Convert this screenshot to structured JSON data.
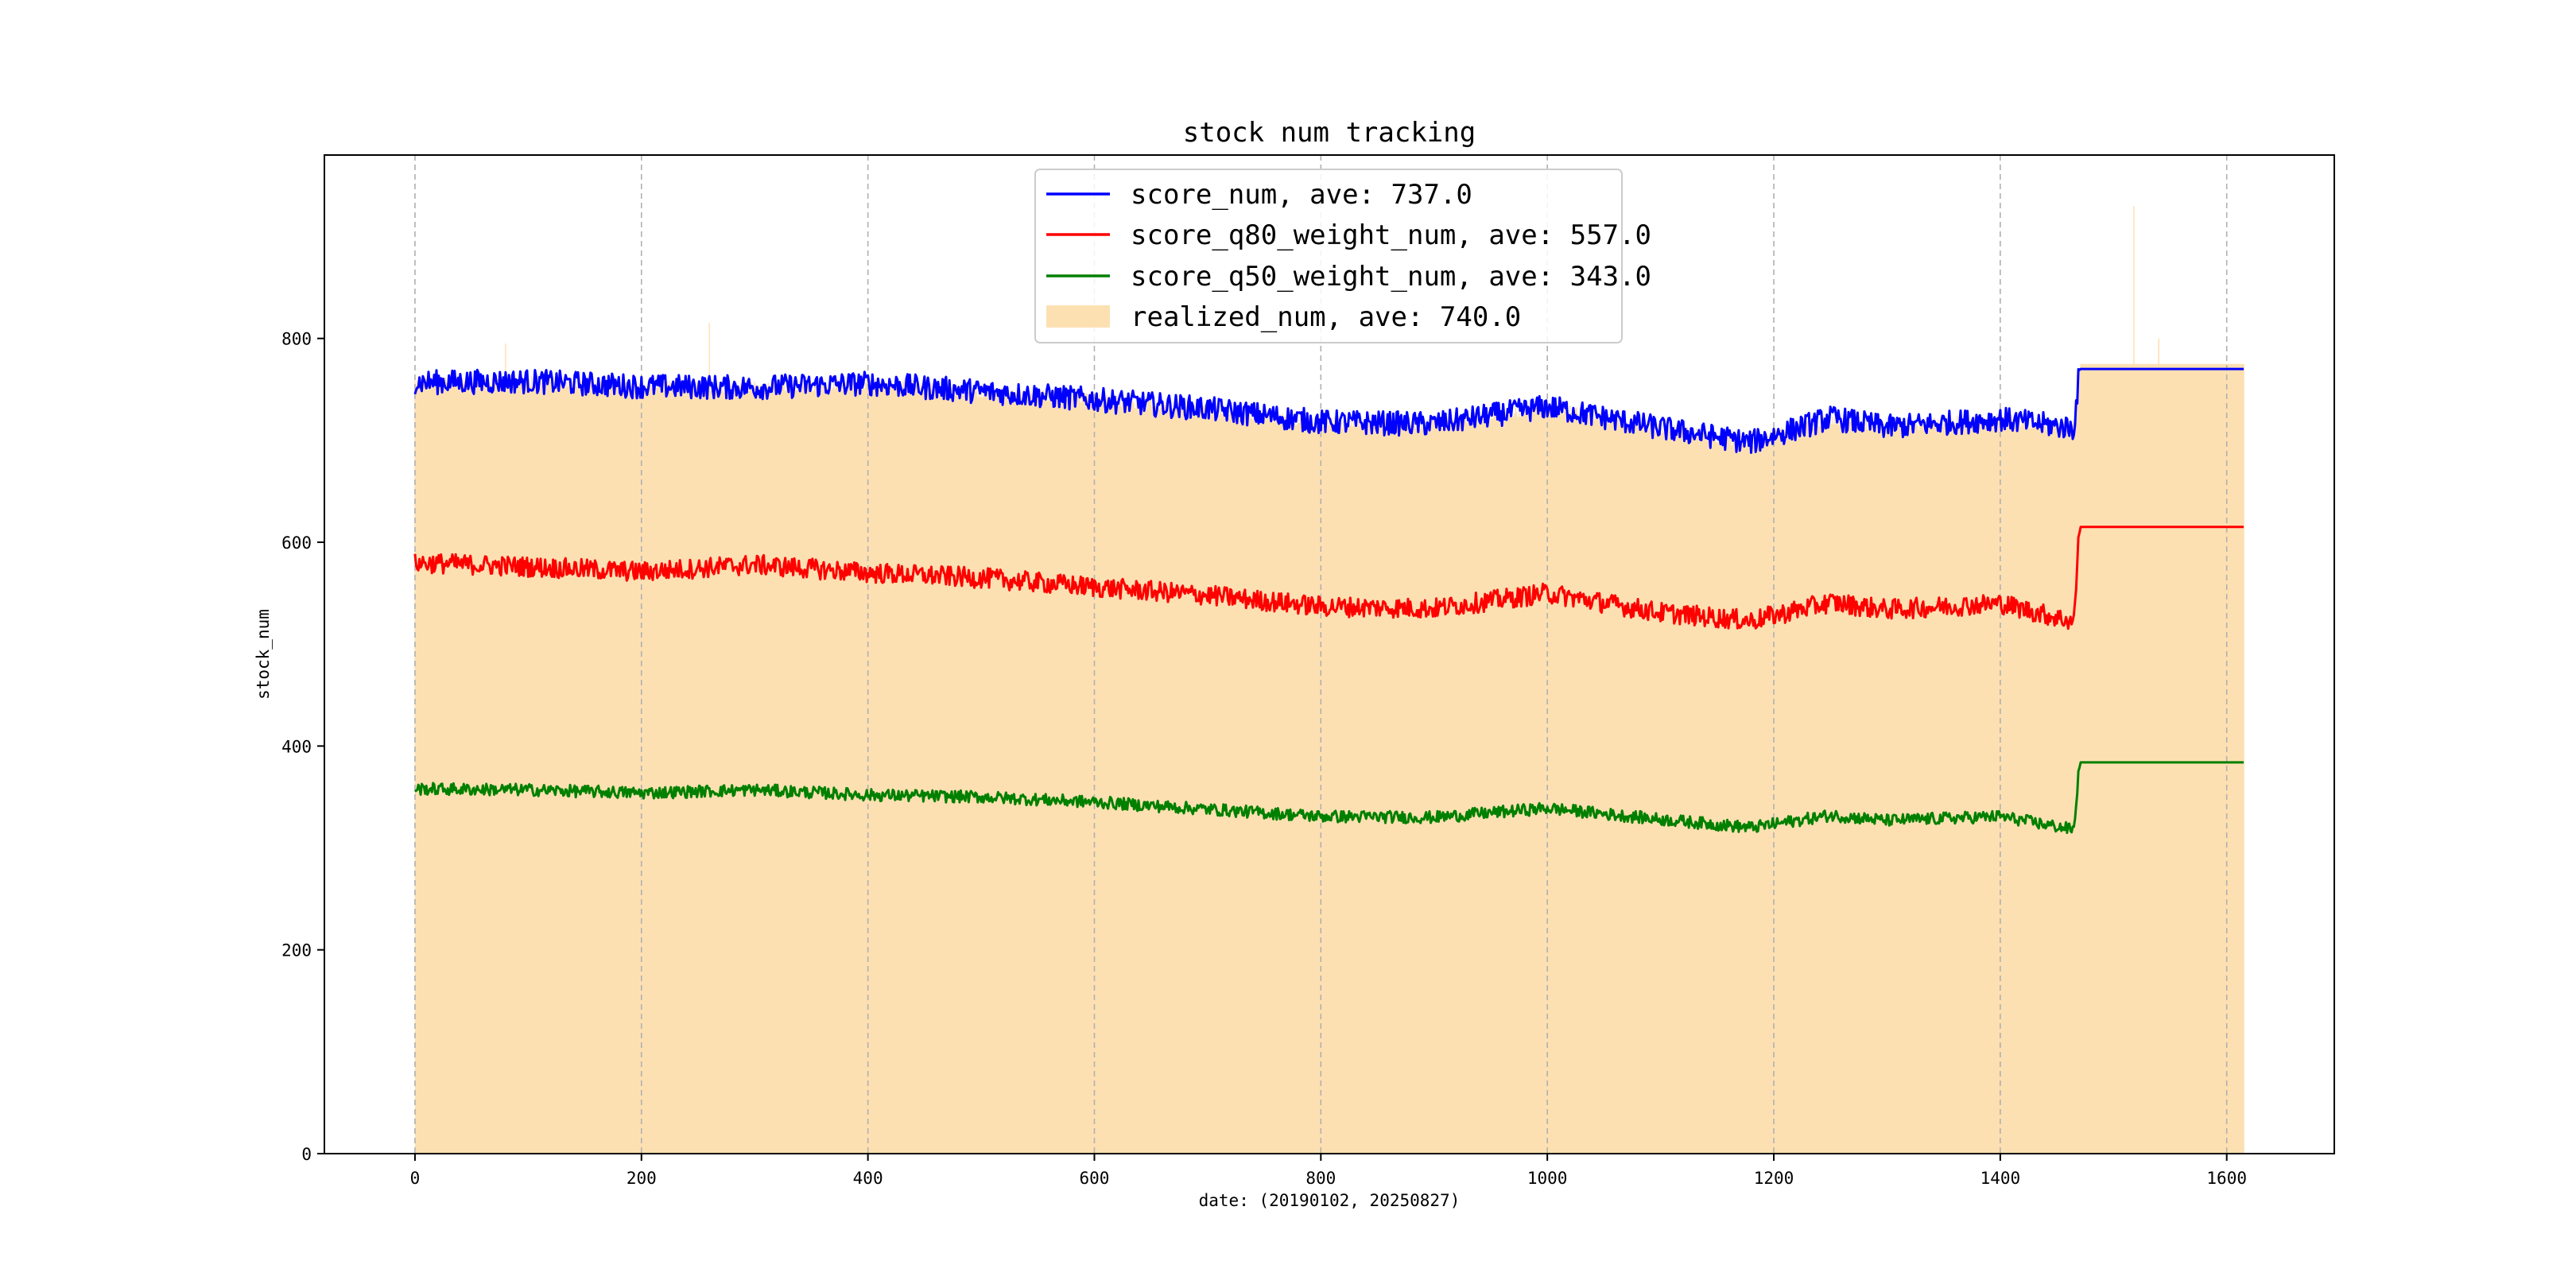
{
  "chart_data": {
    "type": "line",
    "title": "stock num tracking",
    "xlabel": "date: (20190102, 20250827)",
    "ylabel": "stock_num",
    "xlim": [
      -80,
      1695
    ],
    "ylim": [
      0,
      980
    ],
    "x_ticks": [
      0,
      200,
      400,
      600,
      800,
      1000,
      1200,
      1400,
      1600
    ],
    "y_ticks": [
      0,
      200,
      400,
      600,
      800
    ],
    "grid": "vertical dashed at x ticks",
    "legend_position": "upper center",
    "n_points": 1616,
    "series": [
      {
        "name": "score_num, ave: 737.0",
        "kind": "line",
        "color": "#0000ff",
        "anchors_x": [
          0,
          100,
          200,
          300,
          400,
          500,
          600,
          700,
          800,
          900,
          1000,
          1100,
          1180,
          1250,
          1300,
          1400,
          1465,
          1470,
          1615
        ],
        "anchors_y": [
          757,
          758,
          753,
          752,
          756,
          748,
          740,
          731,
          718,
          716,
          733,
          712,
          698,
          722,
          713,
          721,
          712,
          770,
          770
        ],
        "noise_amplitude": 12
      },
      {
        "name": "score_q80_weight_num, ave: 557.0",
        "kind": "line",
        "color": "#ff0000",
        "anchors_x": [
          0,
          100,
          200,
          300,
          400,
          500,
          600,
          700,
          800,
          900,
          1000,
          1100,
          1180,
          1250,
          1300,
          1400,
          1465,
          1470,
          1615
        ],
        "anchors_y": [
          580,
          576,
          571,
          578,
          570,
          565,
          556,
          548,
          537,
          535,
          550,
          531,
          523,
          541,
          534,
          540,
          522,
          615,
          615
        ],
        "noise_amplitude": 10
      },
      {
        "name": "score_q50_weight_num, ave: 343.0",
        "kind": "line",
        "color": "#008000",
        "anchors_x": [
          0,
          100,
          200,
          300,
          400,
          500,
          600,
          700,
          800,
          900,
          1000,
          1100,
          1180,
          1250,
          1300,
          1400,
          1465,
          1470,
          1615
        ],
        "anchors_y": [
          358,
          357,
          354,
          357,
          352,
          350,
          345,
          338,
          331,
          330,
          339,
          328,
          320,
          332,
          327,
          331,
          318,
          384,
          384
        ],
        "noise_amplitude": 6
      },
      {
        "name": "realized_num, ave: 740.0",
        "kind": "bar",
        "color": "#fde0b2",
        "anchors_x": [
          0,
          100,
          200,
          300,
          400,
          500,
          600,
          700,
          800,
          900,
          1000,
          1100,
          1180,
          1250,
          1300,
          1400,
          1465,
          1470,
          1615
        ],
        "anchors_y": [
          757,
          758,
          753,
          752,
          756,
          748,
          740,
          731,
          718,
          716,
          733,
          712,
          698,
          722,
          713,
          721,
          712,
          775,
          775
        ],
        "noise_amplitude": 6,
        "spikes": [
          [
            80,
            795
          ],
          [
            260,
            815
          ],
          [
            1518,
            930
          ],
          [
            1540,
            800
          ]
        ]
      }
    ]
  }
}
